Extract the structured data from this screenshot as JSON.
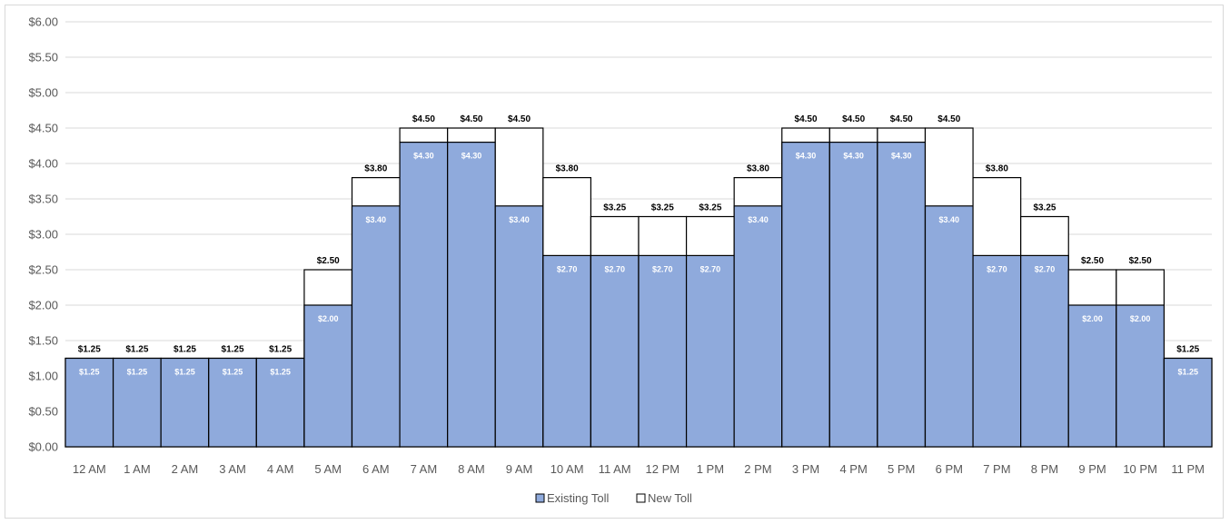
{
  "chart_data": {
    "type": "bar",
    "title": "",
    "xlabel": "",
    "ylabel": "",
    "ylim": [
      0,
      6
    ],
    "y_ticks": [
      "$0.00",
      "$0.50",
      "$1.00",
      "$1.50",
      "$2.00",
      "$2.50",
      "$3.00",
      "$3.50",
      "$4.00",
      "$4.50",
      "$5.00",
      "$5.50",
      "$6.00"
    ],
    "y_tick_values": [
      0,
      0.5,
      1,
      1.5,
      2,
      2.5,
      3,
      3.5,
      4,
      4.5,
      5,
      5.5,
      6
    ],
    "grid": true,
    "legend_position": "bottom",
    "categories": [
      "12 AM",
      "1 AM",
      "2 AM",
      "3 AM",
      "4 AM",
      "5 AM",
      "6 AM",
      "7 AM",
      "8 AM",
      "9 AM",
      "10 AM",
      "11 AM",
      "12 PM",
      "1 PM",
      "2 PM",
      "3 PM",
      "4 PM",
      "5 PM",
      "6 PM",
      "7 PM",
      "8 PM",
      "9 PM",
      "10 PM",
      "11 PM"
    ],
    "series": [
      {
        "name": "Existing Toll",
        "color": "#8faadc",
        "values": [
          1.25,
          1.25,
          1.25,
          1.25,
          1.25,
          2.0,
          3.4,
          4.3,
          4.3,
          3.4,
          2.7,
          2.7,
          2.7,
          2.7,
          3.4,
          4.3,
          4.3,
          4.3,
          3.4,
          2.7,
          2.7,
          2.0,
          2.0,
          1.25
        ],
        "labels": [
          "$1.25",
          "$1.25",
          "$1.25",
          "$1.25",
          "$1.25",
          "$2.00",
          "$3.40",
          "$4.30",
          "$4.30",
          "$3.40",
          "$2.70",
          "$2.70",
          "$2.70",
          "$2.70",
          "$3.40",
          "$4.30",
          "$4.30",
          "$4.30",
          "$3.40",
          "$2.70",
          "$2.70",
          "$2.00",
          "$2.00",
          "$1.25"
        ]
      },
      {
        "name": "New Toll",
        "color": "#ffffff",
        "values": [
          1.25,
          1.25,
          1.25,
          1.25,
          1.25,
          2.5,
          3.8,
          4.5,
          4.5,
          4.5,
          3.8,
          3.25,
          3.25,
          3.25,
          3.8,
          4.5,
          4.5,
          4.5,
          4.5,
          3.8,
          3.25,
          2.5,
          2.5,
          1.25
        ],
        "labels": [
          "$1.25",
          "$1.25",
          "$1.25",
          "$1.25",
          "$1.25",
          "$2.50",
          "$3.80",
          "$4.50",
          "$4.50",
          "$4.50",
          "$3.80",
          "$3.25",
          "$3.25",
          "$3.25",
          "$3.80",
          "$4.50",
          "$4.50",
          "$4.50",
          "$4.50",
          "$3.80",
          "$3.25",
          "$2.50",
          "$2.50",
          "$1.25"
        ]
      }
    ]
  },
  "colors": {
    "existing_fill": "#8faadc",
    "bar_outline": "#000000",
    "gridline": "#d9d9d9",
    "axis_text": "#595959"
  }
}
